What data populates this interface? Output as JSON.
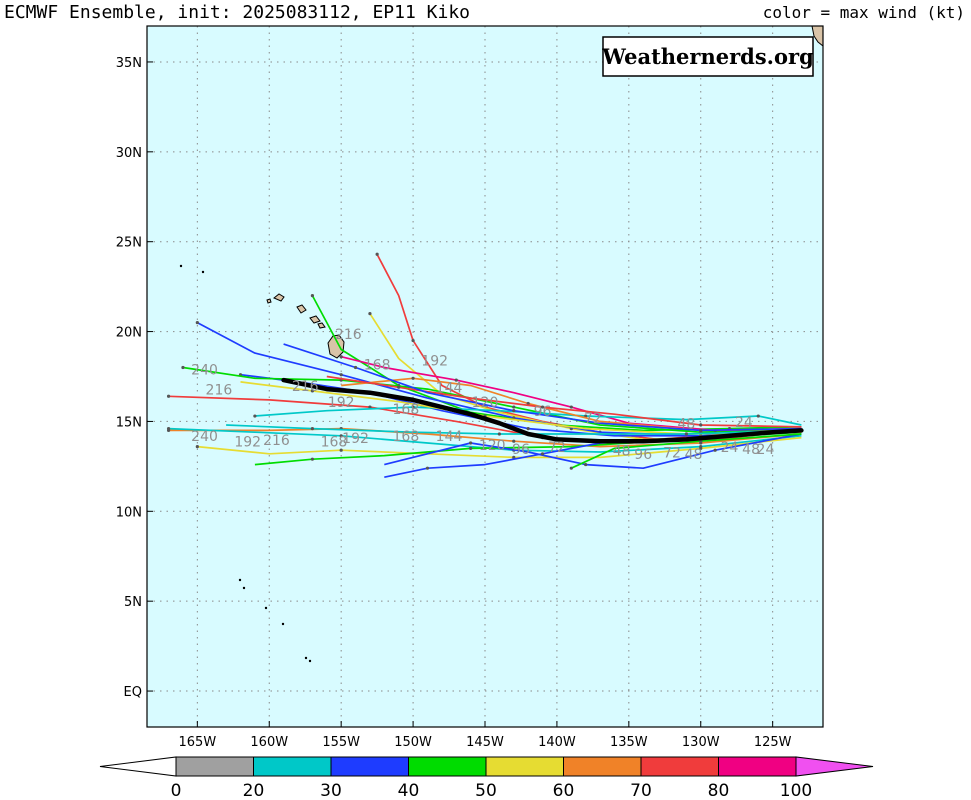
{
  "header": {
    "title": "ECMWF Ensemble, init: 2025083112, EP11 Kiko",
    "legend_note": "color = max wind (kt)"
  },
  "watermark": "Weathernerds.org",
  "map": {
    "extent": {
      "lon_min": -168.5,
      "lon_max": -121.5,
      "lat_min": -2,
      "lat_max": 37
    },
    "background_color": "#d8fbff",
    "grid": "dotted",
    "lat_ticks": [
      {
        "value": 35,
        "label": "35N"
      },
      {
        "value": 30,
        "label": "30N"
      },
      {
        "value": 25,
        "label": "25N"
      },
      {
        "value": 20,
        "label": "20N"
      },
      {
        "value": 15,
        "label": "15N"
      },
      {
        "value": 10,
        "label": "10N"
      },
      {
        "value": 5,
        "label": "5N"
      },
      {
        "value": 0,
        "label": "EQ"
      }
    ],
    "lon_ticks": [
      {
        "value": -165,
        "label": "165W"
      },
      {
        "value": -160,
        "label": "160W"
      },
      {
        "value": -155,
        "label": "155W"
      },
      {
        "value": -150,
        "label": "150W"
      },
      {
        "value": -145,
        "label": "145W"
      },
      {
        "value": -140,
        "label": "140W"
      },
      {
        "value": -135,
        "label": "135W"
      },
      {
        "value": -130,
        "label": "130W"
      },
      {
        "value": -125,
        "label": "125W"
      }
    ],
    "land_color": "#d9c4a8"
  },
  "colorbar": {
    "colors": [
      "#a0a0a0",
      "#00c8c8",
      "#1e3cff",
      "#00dc00",
      "#e6dc32",
      "#f08228",
      "#f03c3c",
      "#f00082",
      "#f050f0"
    ],
    "labels": [
      "0",
      "20",
      "30",
      "40",
      "50",
      "60",
      "70",
      "80",
      "100"
    ]
  },
  "ensemble_mean_color": "#000000",
  "ensemble_mean": [
    [
      -123,
      14.5
    ],
    [
      -125,
      14.4
    ],
    [
      -128,
      14.2
    ],
    [
      -131,
      14.0
    ],
    [
      -134,
      13.9
    ],
    [
      -137,
      13.9
    ],
    [
      -140,
      14.0
    ],
    [
      -142,
      14.3
    ],
    [
      -144,
      14.9
    ],
    [
      -146,
      15.4
    ],
    [
      -148,
      15.8
    ],
    [
      -150,
      16.2
    ],
    [
      -153,
      16.6
    ],
    [
      -156,
      16.8
    ],
    [
      -159,
      17.3
    ]
  ],
  "tracks": [
    {
      "color": "#f03c3c",
      "points": [
        [
          -123,
          14.6
        ],
        [
          -128,
          14.3
        ],
        [
          -133,
          14.0
        ],
        [
          -137,
          14.4
        ],
        [
          -141,
          15.0
        ],
        [
          -145,
          15.8
        ],
        [
          -148,
          17.0
        ],
        [
          -150,
          19.5
        ],
        [
          -151,
          22.0
        ],
        [
          -152.5,
          24.3
        ]
      ]
    },
    {
      "color": "#e6dc32",
      "points": [
        [
          -123,
          14.5
        ],
        [
          -129,
          14.1
        ],
        [
          -134,
          14.0
        ],
        [
          -139,
          14.6
        ],
        [
          -144,
          15.5
        ],
        [
          -148,
          16.5
        ],
        [
          -151,
          18.5
        ],
        [
          -153,
          21.0
        ]
      ]
    },
    {
      "color": "#00dc00",
      "points": [
        [
          -123,
          14.7
        ],
        [
          -128,
          14.6
        ],
        [
          -134,
          14.5
        ],
        [
          -140,
          14.8
        ],
        [
          -146,
          15.5
        ],
        [
          -151,
          17.0
        ],
        [
          -155,
          19.0
        ],
        [
          -157,
          22.0
        ]
      ]
    },
    {
      "color": "#1e3cff",
      "points": [
        [
          -123,
          14.4
        ],
        [
          -130,
          14.2
        ],
        [
          -136,
          14.2
        ],
        [
          -142,
          14.6
        ],
        [
          -148,
          15.6
        ],
        [
          -153,
          16.6
        ],
        [
          -158,
          17.2
        ],
        [
          -162,
          17.6
        ]
      ]
    },
    {
      "color": "#f03c3c",
      "points": [
        [
          -123,
          14.5
        ],
        [
          -129,
          14.0
        ],
        [
          -135,
          13.8
        ],
        [
          -141,
          14.1
        ],
        [
          -147,
          15.0
        ],
        [
          -153,
          15.8
        ],
        [
          -160,
          16.2
        ],
        [
          -167,
          16.4
        ]
      ]
    },
    {
      "color": "#f08228",
      "points": [
        [
          -123,
          14.3
        ],
        [
          -130,
          13.8
        ],
        [
          -137,
          13.6
        ],
        [
          -143,
          13.9
        ],
        [
          -149,
          14.3
        ],
        [
          -155,
          14.6
        ],
        [
          -160,
          14.5
        ],
        [
          -167,
          14.5
        ]
      ]
    },
    {
      "color": "#00c8c8",
      "points": [
        [
          -123,
          14.2
        ],
        [
          -130,
          13.6
        ],
        [
          -137,
          13.3
        ],
        [
          -143,
          13.4
        ],
        [
          -149,
          13.8
        ],
        [
          -155,
          14.2
        ],
        [
          -161,
          14.4
        ],
        [
          -167,
          14.6
        ]
      ]
    },
    {
      "color": "#1e3cff",
      "points": [
        [
          -123,
          14.5
        ],
        [
          -130,
          14.2
        ],
        [
          -137,
          14.4
        ],
        [
          -143,
          15.2
        ],
        [
          -149,
          16.3
        ],
        [
          -155,
          17.6
        ],
        [
          -161,
          18.8
        ],
        [
          -165,
          20.5
        ]
      ]
    },
    {
      "color": "#00dc00",
      "points": [
        [
          -123,
          14.6
        ],
        [
          -130,
          14.4
        ],
        [
          -137,
          14.8
        ],
        [
          -143,
          15.8
        ],
        [
          -149,
          16.8
        ],
        [
          -155,
          17.3
        ],
        [
          -161,
          17.4
        ],
        [
          -166,
          18.0
        ]
      ]
    },
    {
      "color": "#e6dc32",
      "points": [
        [
          -123,
          14.1
        ],
        [
          -130,
          13.5
        ],
        [
          -137,
          13.0
        ],
        [
          -143,
          13.0
        ],
        [
          -149,
          13.2
        ],
        [
          -155,
          13.4
        ],
        [
          -160,
          13.2
        ],
        [
          -165,
          13.6
        ]
      ]
    },
    {
      "color": "#f00082",
      "points": [
        [
          -123,
          14.6
        ],
        [
          -129,
          14.5
        ],
        [
          -135,
          14.9
        ],
        [
          -139,
          15.8
        ],
        [
          -143,
          16.6
        ],
        [
          -147,
          17.3
        ],
        [
          -152,
          18.0
        ],
        [
          -155,
          18.6
        ]
      ]
    },
    {
      "color": "#00dc00",
      "points": [
        [
          -123,
          14.4
        ],
        [
          -131,
          14.0
        ],
        [
          -139,
          13.6
        ],
        [
          -146,
          13.5
        ],
        [
          -152,
          13.1
        ],
        [
          -157,
          12.9
        ],
        [
          -161,
          12.6
        ]
      ]
    },
    {
      "color": "#00c8c8",
      "points": [
        [
          -123,
          14.8
        ],
        [
          -126,
          15.3
        ],
        [
          -131,
          15.1
        ],
        [
          -138,
          15.3
        ],
        [
          -144,
          15.6
        ],
        [
          -150,
          15.8
        ],
        [
          -156,
          15.6
        ],
        [
          -161,
          15.3
        ]
      ]
    },
    {
      "color": "#1e3cff",
      "points": [
        [
          -123,
          14.3
        ],
        [
          -129,
          13.4
        ],
        [
          -134,
          12.4
        ],
        [
          -138,
          12.6
        ],
        [
          -142,
          13.3
        ],
        [
          -146,
          13.8
        ],
        [
          -152,
          12.6
        ]
      ]
    },
    {
      "color": "#f08228",
      "points": [
        [
          -123,
          14.6
        ],
        [
          -130,
          14.5
        ],
        [
          -137,
          15.0
        ],
        [
          -142,
          16.0
        ],
        [
          -146,
          17.0
        ],
        [
          -150,
          17.4
        ],
        [
          -155,
          17.0
        ]
      ]
    },
    {
      "color": "#1e3cff",
      "points": [
        [
          -123,
          14.5
        ],
        [
          -130,
          14.1
        ],
        [
          -137,
          13.8
        ],
        [
          -141,
          13.2
        ],
        [
          -145,
          12.6
        ],
        [
          -149,
          12.4
        ],
        [
          -152,
          11.9
        ]
      ]
    },
    {
      "color": "#e6dc32",
      "points": [
        [
          -123,
          14.4
        ],
        [
          -131,
          14.3
        ],
        [
          -138,
          14.6
        ],
        [
          -145,
          15.3
        ],
        [
          -151,
          16.1
        ],
        [
          -157,
          16.7
        ],
        [
          -162,
          17.2
        ]
      ]
    },
    {
      "color": "#f03c3c",
      "points": [
        [
          -123,
          14.7
        ],
        [
          -130,
          14.8
        ],
        [
          -136,
          15.4
        ],
        [
          -141,
          15.8
        ],
        [
          -146,
          16.3
        ],
        [
          -151,
          16.9
        ],
        [
          -156,
          17.5
        ]
      ]
    },
    {
      "color": "#00dc00",
      "points": [
        [
          -123,
          14.3
        ],
        [
          -130,
          13.9
        ],
        [
          -136,
          13.5
        ],
        [
          -139,
          12.4
        ]
      ]
    },
    {
      "color": "#1e3cff",
      "points": [
        [
          -123,
          14.6
        ],
        [
          -130,
          14.5
        ],
        [
          -137,
          14.9
        ],
        [
          -143,
          15.6
        ],
        [
          -149,
          16.6
        ],
        [
          -154,
          18.0
        ],
        [
          -159,
          19.3
        ]
      ]
    },
    {
      "color": "#00c8c8",
      "points": [
        [
          -123,
          14.5
        ],
        [
          -131,
          14.3
        ],
        [
          -138,
          14.3
        ],
        [
          -144,
          14.3
        ],
        [
          -150,
          14.4
        ],
        [
          -157,
          14.6
        ],
        [
          -163,
          14.8
        ]
      ]
    }
  ],
  "ens_labels": [
    {
      "text": "240",
      "lon": -164.5,
      "lat": 13.9
    },
    {
      "text": "192",
      "lon": -161.5,
      "lat": 13.6
    },
    {
      "text": "216",
      "lon": -159.5,
      "lat": 13.7
    },
    {
      "text": "168",
      "lon": -155.5,
      "lat": 13.6
    },
    {
      "text": "192",
      "lon": -154,
      "lat": 13.8
    },
    {
      "text": "168",
      "lon": -150.5,
      "lat": 13.9
    },
    {
      "text": "144",
      "lon": -147.5,
      "lat": 13.9
    },
    {
      "text": "120",
      "lon": -144.5,
      "lat": 13.4
    },
    {
      "text": "96",
      "lon": -142.5,
      "lat": 13.2
    },
    {
      "text": "72",
      "lon": -140,
      "lat": 13.3
    },
    {
      "text": "48",
      "lon": -135.5,
      "lat": 13.1
    },
    {
      "text": "96",
      "lon": -134,
      "lat": 12.9
    },
    {
      "text": "72",
      "lon": -132,
      "lat": 13.0
    },
    {
      "text": "48",
      "lon": -130.5,
      "lat": 12.9
    },
    {
      "text": "24",
      "lon": -128,
      "lat": 13.3
    },
    {
      "text": "48",
      "lon": -126.5,
      "lat": 13.2
    },
    {
      "text": "24",
      "lon": -125.5,
      "lat": 13.2
    },
    {
      "text": "240",
      "lon": -164.5,
      "lat": 17.6
    },
    {
      "text": "216",
      "lon": -163.5,
      "lat": 16.5
    },
    {
      "text": "216",
      "lon": -157.5,
      "lat": 16.7
    },
    {
      "text": "192",
      "lon": -155,
      "lat": 15.8
    },
    {
      "text": "168",
      "lon": -150.5,
      "lat": 15.4
    },
    {
      "text": "144",
      "lon": -147.5,
      "lat": 16.6
    },
    {
      "text": "120",
      "lon": -145,
      "lat": 15.8
    },
    {
      "text": "96",
      "lon": -141,
      "lat": 15.3
    },
    {
      "text": "72",
      "lon": -137.5,
      "lat": 14.9
    },
    {
      "text": "48",
      "lon": -131,
      "lat": 14.6
    },
    {
      "text": "24",
      "lon": -127,
      "lat": 14.7
    },
    {
      "text": "192",
      "lon": -148.5,
      "lat": 18.1
    },
    {
      "text": "168",
      "lon": -152.5,
      "lat": 17.9
    },
    {
      "text": "216",
      "lon": -154.5,
      "lat": 19.6
    }
  ]
}
